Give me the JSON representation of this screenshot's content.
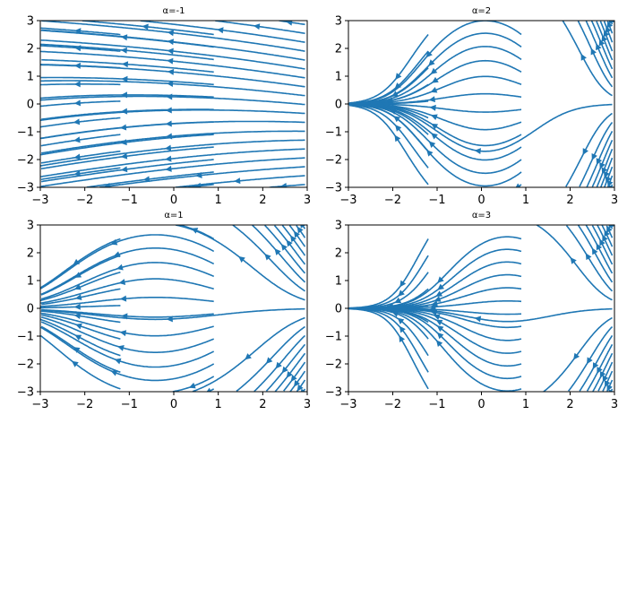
{
  "figure": {
    "background": "#ffffff",
    "stream_color": "#1f77b4"
  },
  "chart_data": [
    {
      "type": "streamplot",
      "title": "α=-1",
      "alpha": -1,
      "xlim": [
        -3,
        3
      ],
      "ylim": [
        -3,
        3
      ],
      "xticks": [
        "−3",
        "−2",
        "−1",
        "0",
        "1",
        "2",
        "3"
      ],
      "yticks": [
        "−3",
        "−2",
        "−1",
        "0",
        "1",
        "2",
        "3"
      ],
      "legend": "none",
      "grid": false
    },
    {
      "type": "streamplot",
      "title": "α=2",
      "alpha": 2,
      "xlim": [
        -3,
        3
      ],
      "ylim": [
        -3,
        3
      ],
      "xticks": [
        "−3",
        "−2",
        "−1",
        "0",
        "1",
        "2",
        "3"
      ],
      "yticks": [
        "−3",
        "−2",
        "−1",
        "0",
        "1",
        "2",
        "3"
      ],
      "legend": "none",
      "grid": false
    },
    {
      "type": "streamplot",
      "title": "α=1",
      "alpha": 1,
      "xlim": [
        -3,
        3
      ],
      "ylim": [
        -3,
        3
      ],
      "xticks": [
        "−3",
        "−2",
        "−1",
        "0",
        "1",
        "2",
        "3"
      ],
      "yticks": [
        "−3",
        "−2",
        "−1",
        "0",
        "1",
        "2",
        "3"
      ],
      "legend": "none",
      "grid": false
    },
    {
      "type": "streamplot",
      "title": "α=3",
      "alpha": 3,
      "xlim": [
        -3,
        3
      ],
      "ylim": [
        -3,
        3
      ],
      "xticks": [
        "−3",
        "−2",
        "−1",
        "0",
        "1",
        "2",
        "3"
      ],
      "yticks": [
        "−3",
        "−2",
        "−1",
        "0",
        "1",
        "2",
        "3"
      ],
      "legend": "none",
      "grid": false
    }
  ]
}
